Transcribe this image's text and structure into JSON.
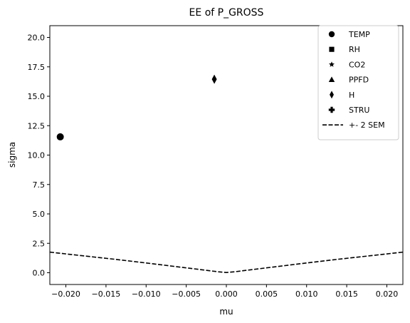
{
  "chart_data": {
    "type": "scatter",
    "title": "EE of P_GROSS",
    "xlabel": "mu",
    "ylabel": "sigma",
    "xlim": [
      -0.022,
      0.022
    ],
    "ylim": [
      -1.0,
      21.0
    ],
    "xticks": [
      -0.02,
      -0.015,
      -0.01,
      -0.005,
      0.0,
      0.005,
      0.01,
      0.015,
      0.02
    ],
    "xtick_labels": [
      "−0.020",
      "−0.015",
      "−0.010",
      "−0.005",
      "0.000",
      "0.005",
      "0.010",
      "0.015",
      "0.020"
    ],
    "yticks": [
      0.0,
      2.5,
      5.0,
      7.5,
      10.0,
      12.5,
      15.0,
      17.5,
      20.0
    ],
    "ytick_labels": [
      "0.0",
      "2.5",
      "5.0",
      "7.5",
      "10.0",
      "12.5",
      "15.0",
      "17.5",
      "20.0"
    ],
    "grid": false,
    "legend_position": "top-right",
    "series": [
      {
        "name": "TEMP",
        "marker": "circle",
        "x": [
          -0.0207
        ],
        "y": [
          11.55
        ]
      },
      {
        "name": "RH",
        "marker": "square",
        "x": [],
        "y": []
      },
      {
        "name": "CO2",
        "marker": "star",
        "x": [],
        "y": []
      },
      {
        "name": "PPFD",
        "marker": "triangle",
        "x": [],
        "y": []
      },
      {
        "name": "H",
        "marker": "diamond",
        "x": [
          -0.0015
        ],
        "y": [
          16.45
        ]
      },
      {
        "name": "STRU",
        "marker": "plus",
        "x": [],
        "y": []
      }
    ],
    "sem_line": {
      "name": "+- 2 SEM",
      "style": "dashed",
      "x": [
        -0.022,
        -0.018,
        -0.014,
        -0.01,
        -0.006,
        -0.003,
        -0.001,
        0.0,
        0.001,
        0.003,
        0.006,
        0.01,
        0.014,
        0.018,
        0.022
      ],
      "y": [
        1.75,
        1.45,
        1.15,
        0.83,
        0.5,
        0.25,
        0.08,
        0.02,
        0.08,
        0.25,
        0.5,
        0.83,
        1.15,
        1.45,
        1.75
      ]
    },
    "color": "#000000"
  }
}
